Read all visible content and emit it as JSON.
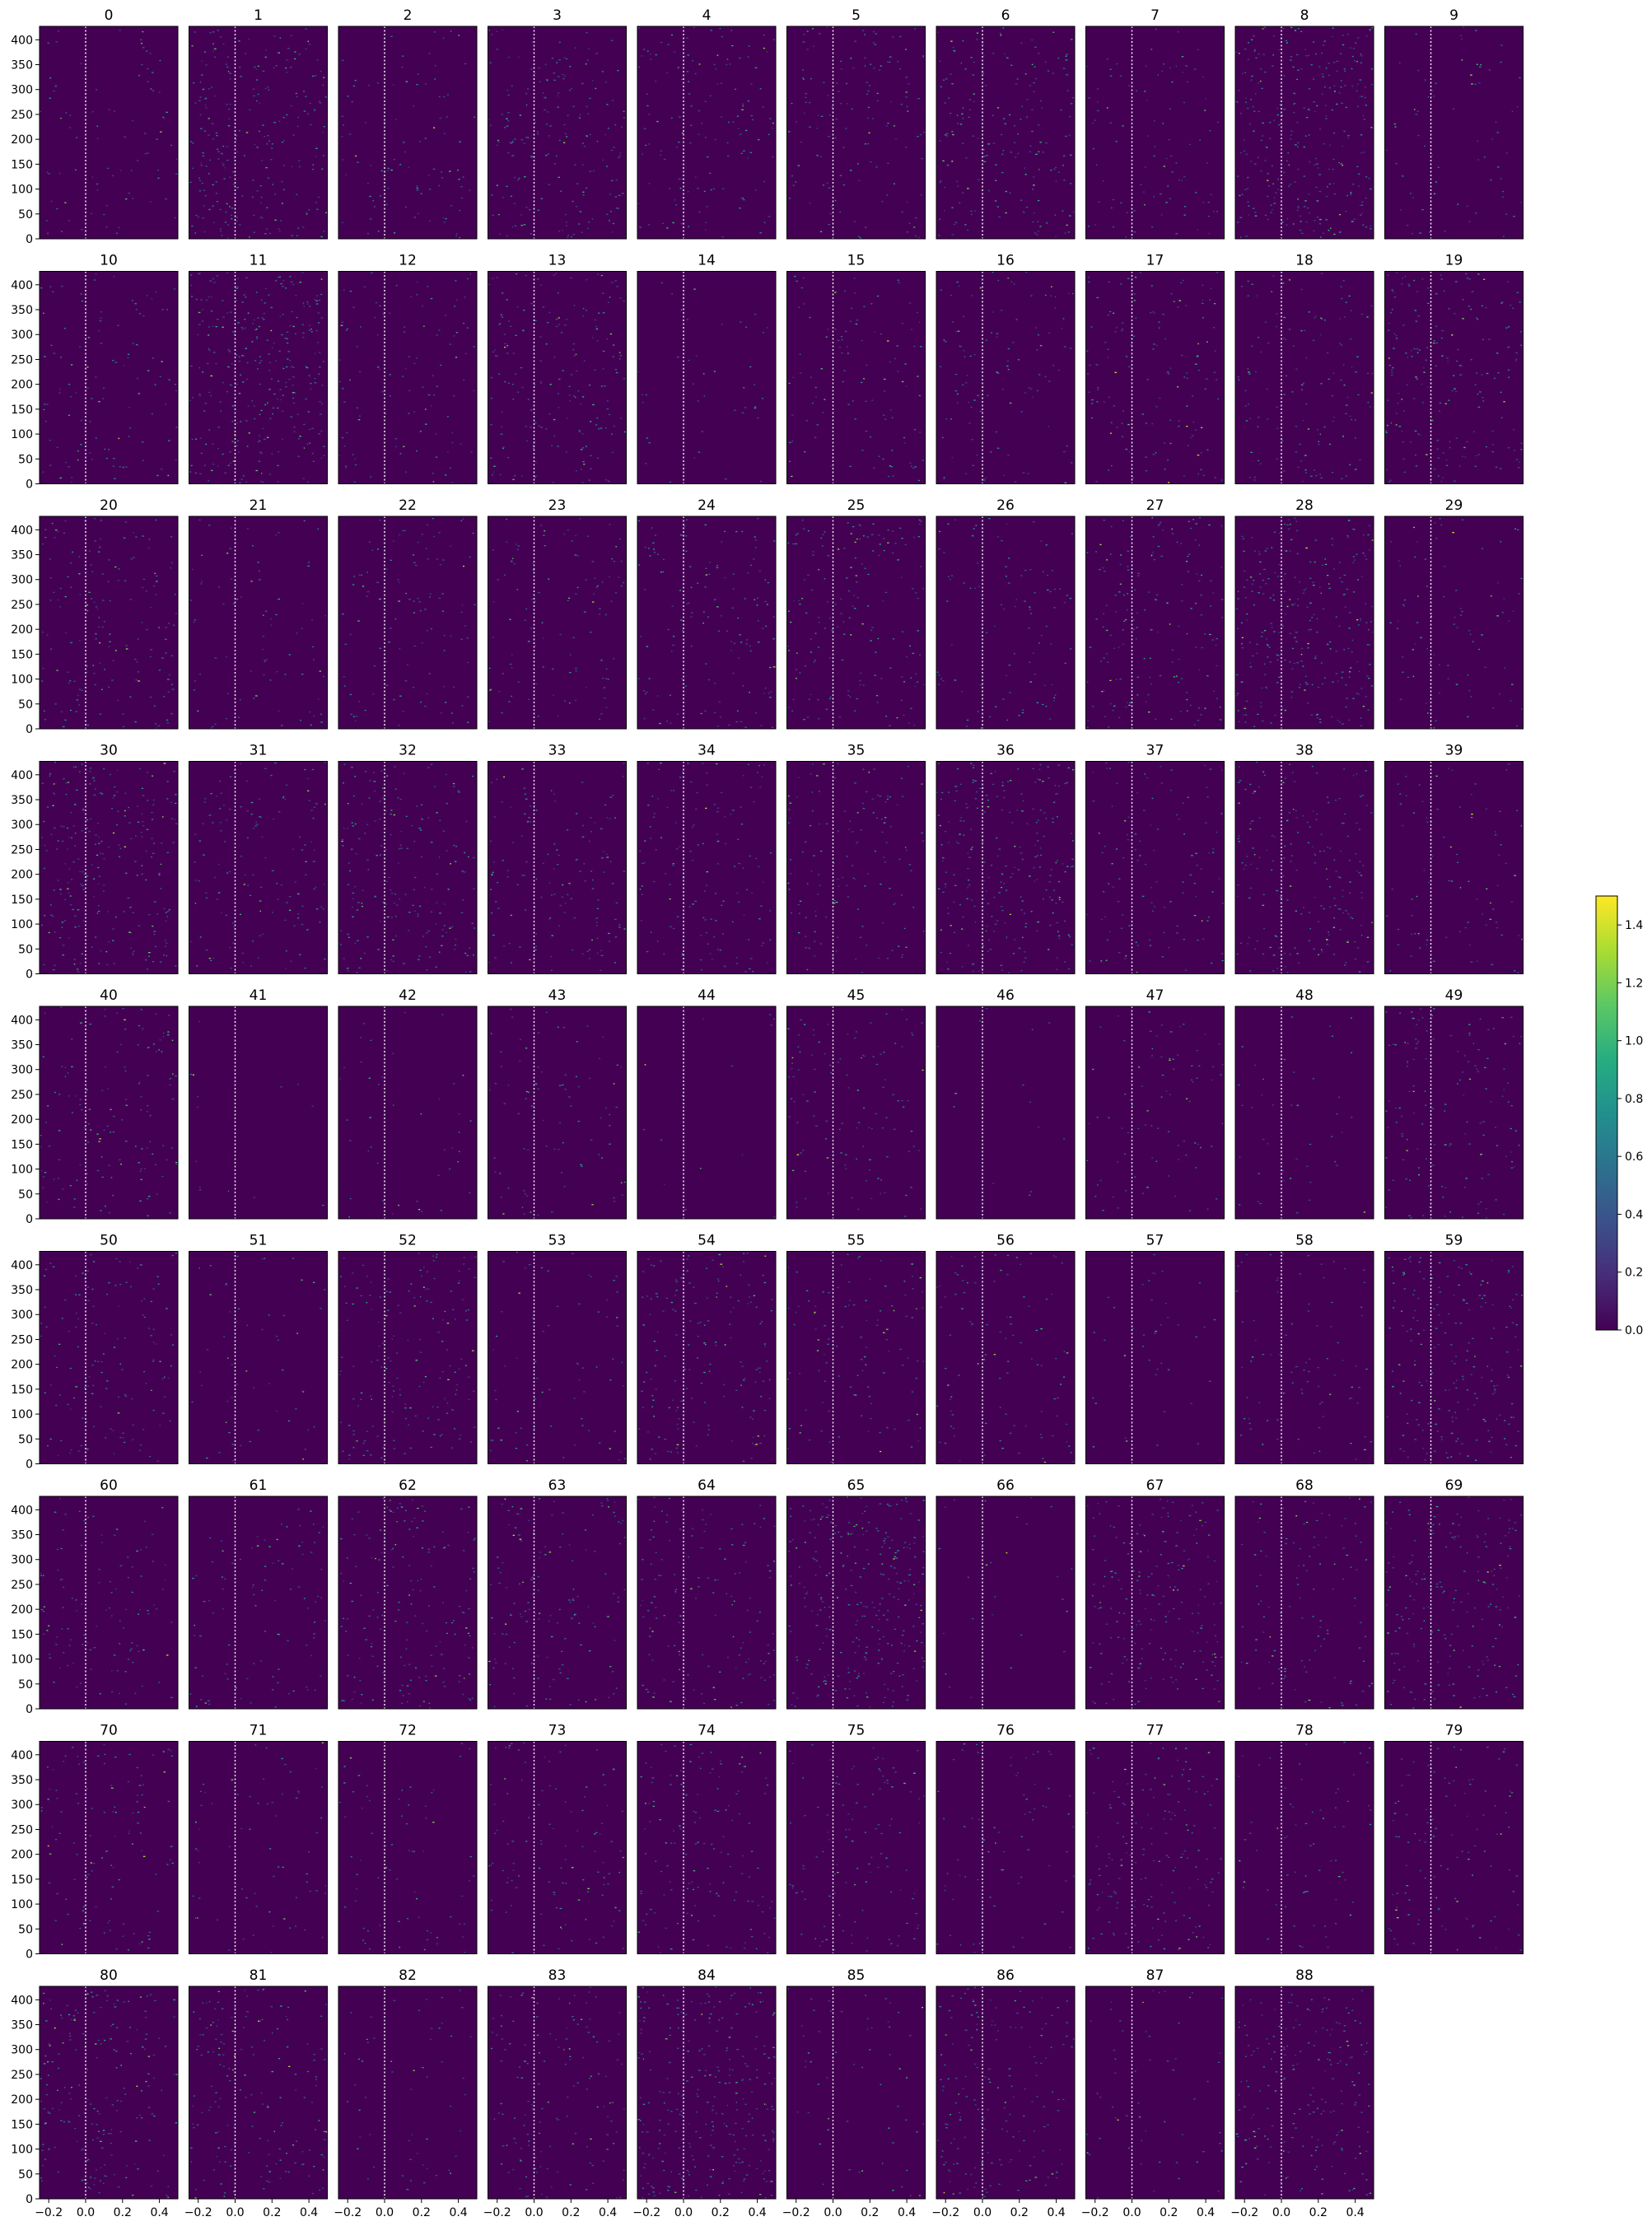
{
  "chart_data": {
    "type": "heatmap",
    "layout": {
      "rows": 9,
      "cols": 10
    },
    "panel_titles": [
      "0",
      "1",
      "2",
      "3",
      "4",
      "5",
      "6",
      "7",
      "8",
      "9",
      "10",
      "11",
      "12",
      "13",
      "14",
      "15",
      "16",
      "17",
      "18",
      "19",
      "20",
      "21",
      "22",
      "23",
      "24",
      "25",
      "26",
      "27",
      "28",
      "29",
      "30",
      "31",
      "32",
      "33",
      "34",
      "35",
      "36",
      "37",
      "38",
      "39",
      "40",
      "41",
      "42",
      "43",
      "44",
      "45",
      "46",
      "47",
      "48",
      "49",
      "50",
      "51",
      "52",
      "53",
      "54",
      "55",
      "56",
      "57",
      "58",
      "59",
      "60",
      "61",
      "62",
      "63",
      "64",
      "65",
      "66",
      "67",
      "68",
      "69",
      "70",
      "71",
      "72",
      "73",
      "74",
      "75",
      "76",
      "77",
      "78",
      "79",
      "80",
      "81",
      "82",
      "83",
      "84",
      "85",
      "86",
      "87",
      "88"
    ],
    "xlim": [
      -0.25,
      0.5
    ],
    "ylim": [
      0,
      427
    ],
    "xticks": [
      -0.2,
      0.0,
      0.2,
      0.4
    ],
    "xtick_labels": [
      "−0.2",
      "0.0",
      "0.2",
      "0.4"
    ],
    "yticks": [
      0,
      50,
      100,
      150,
      200,
      250,
      300,
      350,
      400
    ],
    "ytick_labels": [
      "0",
      "50",
      "100",
      "150",
      "200",
      "250",
      "300",
      "350",
      "400"
    ],
    "vline_x": 0.0,
    "vline_style": "white dotted",
    "colormap": "viridis",
    "colorbar": {
      "vmin": 0.0,
      "vmax": 1.5,
      "ticks": [
        0.0,
        0.2,
        0.4,
        0.6,
        0.8,
        1.0,
        1.2,
        1.4
      ],
      "tick_labels": [
        "0.0",
        "0.2",
        "0.4",
        "0.6",
        "0.8",
        "1.0",
        "1.2",
        "1.4"
      ],
      "placement": "right"
    },
    "panel_activity": [
      0.06,
      0.18,
      0.07,
      0.14,
      0.1,
      0.1,
      0.14,
      0.07,
      0.22,
      0.05,
      0.08,
      0.22,
      0.08,
      0.14,
      0.03,
      0.08,
      0.08,
      0.1,
      0.1,
      0.14,
      0.12,
      0.06,
      0.08,
      0.08,
      0.1,
      0.12,
      0.07,
      0.12,
      0.2,
      0.06,
      0.18,
      0.1,
      0.14,
      0.1,
      0.1,
      0.1,
      0.18,
      0.08,
      0.14,
      0.06,
      0.1,
      0.01,
      0.03,
      0.06,
      0.01,
      0.08,
      0.01,
      0.06,
      0.03,
      0.1,
      0.1,
      0.04,
      0.12,
      0.05,
      0.12,
      0.08,
      0.07,
      0.03,
      0.06,
      0.14,
      0.08,
      0.07,
      0.12,
      0.1,
      0.1,
      0.2,
      0.02,
      0.14,
      0.08,
      0.14,
      0.08,
      0.05,
      0.05,
      0.08,
      0.1,
      0.08,
      0.05,
      0.12,
      0.05,
      0.08,
      0.14,
      0.12,
      0.04,
      0.1,
      0.2,
      0.04,
      0.12,
      0.04,
      0.14
    ]
  }
}
